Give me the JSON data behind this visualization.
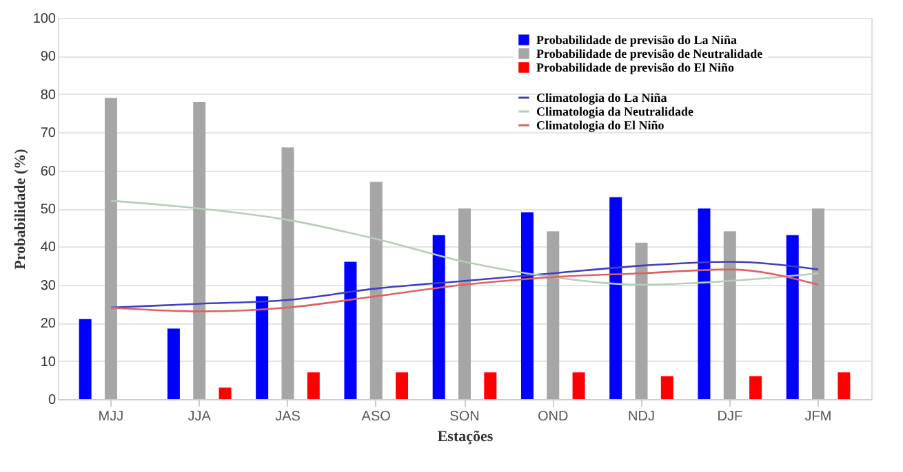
{
  "chart_data": {
    "type": "bar",
    "xlabel": "Estações",
    "ylabel": "Probabilidade (%)",
    "categories": [
      "MJJ",
      "JJA",
      "JAS",
      "ASO",
      "SON",
      "OND",
      "NDJ",
      "DJF",
      "JFM"
    ],
    "ylim": [
      0,
      100
    ],
    "yticks": [
      0,
      10,
      20,
      30,
      40,
      50,
      60,
      70,
      80,
      90,
      100
    ],
    "grid": "y",
    "legend": "top right",
    "series": [
      {
        "name": "Probabilidade de previsão do La Niña",
        "color": "#0000ff",
        "values": [
          21,
          18.5,
          27,
          36,
          43,
          49,
          53,
          50,
          43
        ]
      },
      {
        "name": "Probabilidade de previsão de Neutralidade",
        "color": "#a6a6a6",
        "values": [
          79,
          78,
          66,
          57,
          50,
          44,
          41,
          44,
          50
        ]
      },
      {
        "name": "Probabilidade de previsão do El Niño",
        "color": "#ff0000",
        "values": [
          0,
          3,
          7,
          7,
          7,
          7,
          6,
          6,
          7
        ]
      },
      {
        "name": "Climatologia do La Niña",
        "type": "line",
        "color": "#4040c0",
        "values": [
          24,
          25,
          26,
          29,
          31,
          33,
          35,
          36,
          34
        ]
      },
      {
        "name": "Climatologia da Neutralidade",
        "type": "line",
        "color": "#b8ccb8",
        "values": [
          52,
          50,
          47,
          42,
          36,
          32,
          30,
          31,
          33
        ]
      },
      {
        "name": "Climatologia do El Niño",
        "type": "line",
        "color": "#e06060",
        "values": [
          24,
          23,
          24,
          27,
          30,
          32,
          33,
          34,
          30
        ]
      }
    ]
  }
}
